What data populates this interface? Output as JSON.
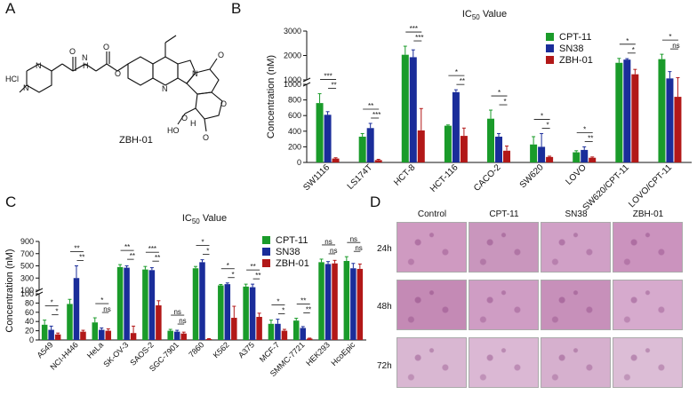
{
  "panels": {
    "a": "A",
    "b": "B",
    "c": "C",
    "d": "D"
  },
  "compound_name": "ZBH-01",
  "molecule_labels": {
    "hcl": "HCl",
    "n1": "N",
    "n2": "N",
    "n3": "N",
    "n4": "N",
    "n5": "N",
    "o1": "O",
    "o2": "O",
    "o3": "O",
    "o4": "O",
    "o5": "O",
    "o6": "O",
    "o7": "O",
    "h1": "H",
    "h2": "H",
    "oh": "HO"
  },
  "colors": {
    "cpt11": "#1a9b2a",
    "sn38": "#1a2d9a",
    "zbh01": "#b21818"
  },
  "chart_data": [
    {
      "id": "B",
      "type": "bar",
      "title": "IC50 Value",
      "title_main": "IC",
      "title_sub": "50",
      "title_rest": " Value",
      "ylabel": "Concentration (nM)",
      "broken_axis": {
        "lower": [
          0,
          1000
        ],
        "upper": [
          1000,
          3000
        ]
      },
      "lower_ticks": [
        0,
        200,
        400,
        600,
        800,
        1000
      ],
      "upper_ticks": [
        1000,
        2000,
        3000
      ],
      "categories": [
        "SW1116",
        "LS174T",
        "HCT-8",
        "HCT-116",
        "CACO-2",
        "SW620",
        "LOVO",
        "SW620/CPT-11",
        "LOVO/CPT-11"
      ],
      "series": [
        {
          "name": "CPT-11",
          "color": "#1a9b2a",
          "values": [
            760,
            330,
            2030,
            470,
            560,
            230,
            130,
            1700,
            1850
          ],
          "errors": [
            120,
            40,
            350,
            10,
            110,
            100,
            20,
            180,
            200
          ]
        },
        {
          "name": "SN38",
          "color": "#1a2d9a",
          "values": [
            610,
            440,
            1930,
            900,
            330,
            200,
            160,
            1830,
            1060
          ],
          "errors": [
            40,
            60,
            300,
            30,
            40,
            170,
            40,
            40,
            280
          ]
        },
        {
          "name": "ZBH-01",
          "color": "#b21818",
          "values": [
            50,
            30,
            410,
            340,
            150,
            70,
            60,
            1230,
            840
          ],
          "errors": [
            10,
            10,
            280,
            100,
            60,
            10,
            10,
            200,
            250
          ]
        }
      ],
      "significance": [
        [
          "***",
          "**"
        ],
        [
          "**",
          "***"
        ],
        [
          "***",
          "***"
        ],
        [
          "*",
          "**"
        ],
        [
          "*",
          "*"
        ],
        [
          "*",
          "*"
        ],
        [
          "*",
          "**"
        ],
        [
          "*",
          "*"
        ],
        [
          "*",
          "ns"
        ]
      ]
    },
    {
      "id": "C",
      "type": "bar",
      "title": "IC50 Value",
      "title_main": "IC",
      "title_sub": "50",
      "title_rest": " Value",
      "ylabel": "Concentration (nM)",
      "broken_axis": {
        "lower": [
          0,
          100
        ],
        "upper": [
          100,
          900
        ]
      },
      "lower_ticks": [
        0,
        20,
        40,
        60,
        80,
        100
      ],
      "upper_ticks": [
        100,
        300,
        500,
        700,
        900
      ],
      "categories": [
        "A549",
        "NCI-H446",
        "HeLa",
        "SK-OV-3",
        "SAOS-2",
        "SGC-7901",
        "7860",
        "K562",
        "A375",
        "MCF-7",
        "SMMC-7721",
        "HEK293",
        "HcoEpic"
      ],
      "series": [
        {
          "name": "CPT-11",
          "color": "#1a9b2a",
          "values": [
            33,
            78,
            38,
            480,
            440,
            20,
            460,
            180,
            160,
            35,
            42,
            560,
            580
          ],
          "errors": [
            10,
            10,
            10,
            40,
            50,
            3,
            30,
            15,
            40,
            8,
            5,
            50,
            70
          ]
        },
        {
          "name": "SN38",
          "color": "#1a2d9a",
          "values": [
            22,
            300,
            22,
            470,
            430,
            18,
            560,
            200,
            150,
            35,
            26,
            530,
            460
          ],
          "errors": [
            8,
            200,
            4,
            30,
            40,
            3,
            40,
            20,
            50,
            10,
            3,
            40,
            80
          ]
        },
        {
          "name": "ZBH-01",
          "color": "#b21818",
          "values": [
            12,
            18,
            20,
            15,
            75,
            14,
            2,
            48,
            50,
            20,
            3,
            540,
            450
          ],
          "errors": [
            3,
            3,
            4,
            15,
            10,
            3,
            1,
            25,
            8,
            3,
            1,
            50,
            80
          ]
        }
      ],
      "significance": [
        [
          "*",
          "*"
        ],
        [
          "**",
          "**"
        ],
        [
          "*",
          "ns"
        ],
        [
          "**",
          "**"
        ],
        [
          "***",
          "**"
        ],
        [
          "ns",
          "ns"
        ],
        [
          "*",
          "*"
        ],
        [
          "*",
          "*"
        ],
        [
          "**",
          "**"
        ],
        [
          "*",
          "*"
        ],
        [
          "**",
          "**"
        ],
        [
          "ns",
          "ns"
        ],
        [
          "ns",
          "ns"
        ]
      ]
    }
  ],
  "microscopy": {
    "columns": [
      "Control",
      "CPT-11",
      "SN38",
      "ZBH-01"
    ],
    "rows": [
      "24h",
      "48h",
      "72h"
    ]
  }
}
